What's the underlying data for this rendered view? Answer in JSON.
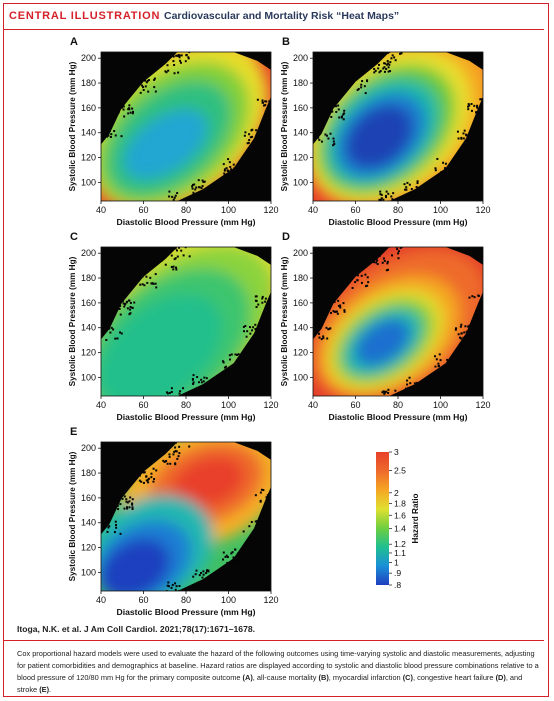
{
  "header": {
    "tag": "CENTRAL ILLUSTRATION",
    "title": "Cardiovascular and Mortality Risk “Heat Maps”"
  },
  "chart_data": [
    {
      "type": "heatmap",
      "panel": "A",
      "xlabel": "Diastolic Blood Pressure (mm Hg)",
      "ylabel": "Systolic Blood Pressure (mm Hg)",
      "xlim": [
        40,
        120
      ],
      "ylim": [
        85,
        205
      ],
      "xticks": [
        40,
        60,
        80,
        100,
        120
      ],
      "yticks": [
        100,
        120,
        140,
        160,
        180,
        200
      ],
      "min_hazard_ratio": 1.05,
      "min_at": {
        "x": 72,
        "y": 133
      },
      "high_regions": "upper-right and lower-left edges"
    },
    {
      "type": "heatmap",
      "panel": "B",
      "xlabel": "Diastolic Blood Pressure (mm Hg)",
      "ylabel": "Systolic Blood Pressure (mm Hg)",
      "xlim": [
        40,
        120
      ],
      "ylim": [
        85,
        205
      ],
      "xticks": [
        40,
        60,
        80,
        100,
        120
      ],
      "yticks": [
        100,
        120,
        140,
        160,
        180,
        200
      ],
      "min_hazard_ratio": 0.8,
      "min_at": {
        "x": 68,
        "y": 142
      },
      "high_regions": "edges"
    },
    {
      "type": "heatmap",
      "panel": "C",
      "xlabel": "Diastolic Blood Pressure (mm Hg)",
      "ylabel": "Systolic Blood Pressure (mm Hg)",
      "xlim": [
        40,
        120
      ],
      "ylim": [
        85,
        205
      ],
      "xticks": [
        40,
        60,
        80,
        100,
        120
      ],
      "yticks": [
        100,
        120,
        140,
        160,
        180,
        200
      ],
      "min_hazard_ratio": 1.15,
      "min_at": {
        "x": 62,
        "y": 125
      },
      "high_regions": "upper edge"
    },
    {
      "type": "heatmap",
      "panel": "D",
      "xlabel": "Diastolic Blood Pressure (mm Hg)",
      "ylabel": "Systolic Blood Pressure (mm Hg)",
      "xlim": [
        40,
        120
      ],
      "ylim": [
        85,
        205
      ],
      "xticks": [
        40,
        60,
        80,
        100,
        120
      ],
      "yticks": [
        100,
        120,
        140,
        160,
        180,
        200
      ],
      "min_hazard_ratio": 0.85,
      "min_at": {
        "x": 70,
        "y": 130
      },
      "high_regions": "all edges"
    },
    {
      "type": "heatmap",
      "panel": "E",
      "xlabel": "Diastolic Blood Pressure (mm Hg)",
      "ylabel": "Systolic Blood Pressure (mm Hg)",
      "xlim": [
        40,
        120
      ],
      "ylim": [
        85,
        205
      ],
      "xticks": [
        40,
        60,
        80,
        100,
        120
      ],
      "yticks": [
        100,
        120,
        140,
        160,
        180,
        200
      ],
      "min_hazard_ratio": 0.85,
      "min_at": {
        "x": 58,
        "y": 105
      },
      "max_hazard_ratio": 2.5,
      "max_at": {
        "x": 90,
        "y": 175
      }
    }
  ],
  "colorbar": {
    "label": "Hazard Ratio",
    "ticks": [
      "3",
      "2.5",
      "2",
      "1.8",
      "1.6",
      "1.4",
      "1.2",
      "1.1",
      "1",
      ".9",
      ".8"
    ],
    "tick_values": [
      3,
      2.5,
      2,
      1.8,
      1.6,
      1.4,
      1.2,
      1.1,
      1,
      0.9,
      0.8
    ],
    "colors": [
      "#1f3fbf",
      "#1a8fd8",
      "#1fbf8f",
      "#6fcf3f",
      "#e0e030",
      "#f5a623",
      "#ee6a2c",
      "#e8402a"
    ]
  },
  "citation": "Itoga, N.K. et al. J Am Coll Cardiol. 2021;78(17):1671–1678.",
  "caption": {
    "t1": "Cox proportional hazard models were used to evaluate the hazard of the following outcomes using time-varying systolic and diastolic measurements, adjusting for patient comorbidities and demographics at baseline. Hazard ratios are displayed according to systolic and diastolic blood pressure combinations relative to a blood pressure of 120/80 mm Hg for the primary composite outcome ",
    "a": "(A)",
    "t2": ", all-cause mortality ",
    "b": "(B)",
    "t3": ", myocardial infarction ",
    "c": "(C)",
    "t4": ", congestive heart failure ",
    "d": "(D)",
    "t5": ", and stroke ",
    "e": "(E)",
    "t6": "."
  }
}
